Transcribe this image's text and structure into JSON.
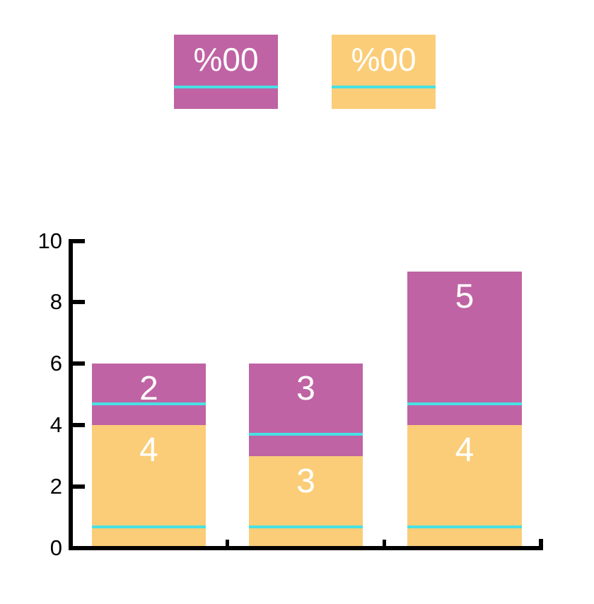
{
  "figure": {
    "background": "#FFFFFF",
    "axis_color": "#000000",
    "bar_text_color": "#FFFFFF"
  },
  "legend": {
    "position": "top-center",
    "items": [
      {
        "label": "%00",
        "color": "#BF63A4"
      },
      {
        "label": "%00",
        "color": "#FBCD78"
      }
    ]
  },
  "chart_data": {
    "type": "bar",
    "stacked": true,
    "title": "",
    "xlabel": "",
    "ylabel": "",
    "ylim": [
      0,
      10
    ],
    "ytick_step": 2,
    "ytick_labels": [
      "0",
      "2",
      "4",
      "6",
      "8",
      "10"
    ],
    "x_category_labels_visible": false,
    "grid": false,
    "series": [
      {
        "name": "%00",
        "stack_position": "bottom",
        "color": "#FBCD78",
        "values": [
          4,
          3,
          4
        ]
      },
      {
        "name": "%00",
        "stack_position": "top",
        "color": "#BF63A4",
        "values": [
          2,
          3,
          5
        ]
      }
    ],
    "bar_totals": [
      6,
      6,
      9
    ],
    "marker_lines": {
      "color": "#48E1E4",
      "values_per_bar": [
        [
          0.7,
          4.7
        ],
        [
          0.7,
          3.7
        ],
        [
          0.7,
          4.7
        ]
      ]
    }
  }
}
